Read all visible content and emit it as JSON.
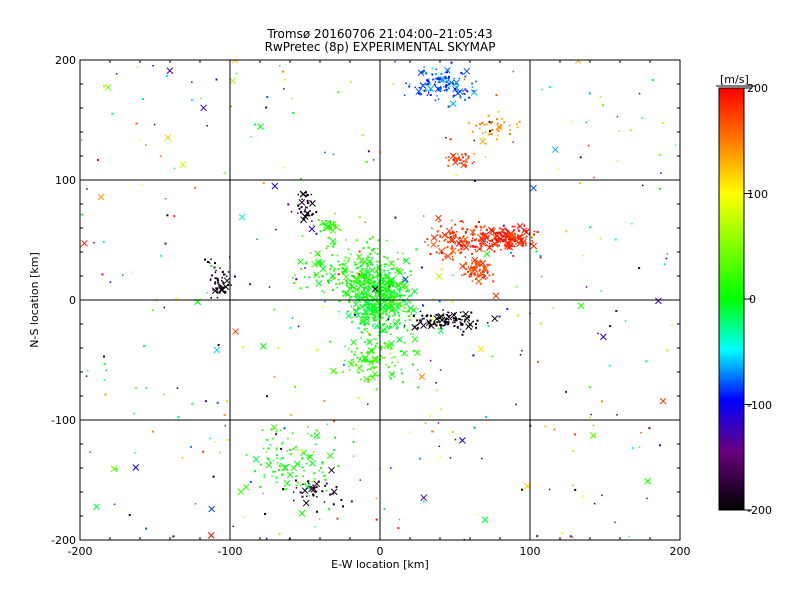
{
  "chart_data": {
    "type": "scatter",
    "title": "Tromsø 20160706 21:04:00–21:05:43",
    "subtitle": "RwPretec (8p) EXPERIMENTAL SKYMAP",
    "xlabel": "E-W location [km]",
    "ylabel": "N-S location [km]",
    "xlim": [
      -200,
      200
    ],
    "ylim": [
      -200,
      200
    ],
    "xticks": [
      "-200",
      "-100",
      "0",
      "100",
      "200"
    ],
    "yticks": [
      "-200",
      "-100",
      "0",
      "100",
      "200"
    ],
    "grid": true,
    "colorbar": {
      "label": "[m/s]",
      "range": [
        -200,
        200
      ],
      "ticks": [
        "-200",
        "-100",
        "0",
        "100",
        "200"
      ],
      "stops": [
        "#000000",
        "#6a0080",
        "#0000ff",
        "#00ffff",
        "#00ff00",
        "#ffff00",
        "#ff8000",
        "#ff0000"
      ]
    },
    "clusters": [
      {
        "velocity": 0,
        "x": [
          -30,
          30
        ],
        "y": [
          -40,
          40
        ],
        "count": 520
      },
      {
        "velocity": 10,
        "x": [
          -70,
          40
        ],
        "y": [
          -10,
          60
        ],
        "count": 220
      },
      {
        "velocity": 20,
        "x": [
          -40,
          30
        ],
        "y": [
          -80,
          -20
        ],
        "count": 120
      },
      {
        "velocity": 5,
        "x": [
          -100,
          -20
        ],
        "y": [
          -180,
          -90
        ],
        "count": 110
      },
      {
        "velocity": 15,
        "x": [
          -45,
          -25
        ],
        "y": [
          55,
          70
        ],
        "count": 40
      },
      {
        "velocity": 190,
        "x": [
          60,
          110
        ],
        "y": [
          40,
          65
        ],
        "count": 160
      },
      {
        "velocity": 180,
        "x": [
          20,
          90
        ],
        "y": [
          25,
          75
        ],
        "count": 150
      },
      {
        "velocity": 175,
        "x": [
          50,
          80
        ],
        "y": [
          10,
          40
        ],
        "count": 80
      },
      {
        "velocity": 170,
        "x": [
          40,
          70
        ],
        "y": [
          110,
          125
        ],
        "count": 40
      },
      {
        "velocity": 140,
        "x": [
          55,
          100
        ],
        "y": [
          130,
          160
        ],
        "count": 40
      },
      {
        "velocity": -200,
        "x": [
          10,
          80
        ],
        "y": [
          -30,
          -5
        ],
        "count": 110
      },
      {
        "velocity": -190,
        "x": [
          -120,
          -95
        ],
        "y": [
          -10,
          40
        ],
        "count": 50
      },
      {
        "velocity": -190,
        "x": [
          -70,
          -20
        ],
        "y": [
          -180,
          -140
        ],
        "count": 40
      },
      {
        "velocity": -190,
        "x": [
          -60,
          -40
        ],
        "y": [
          60,
          100
        ],
        "count": 40
      },
      {
        "velocity": -80,
        "x": [
          10,
          70
        ],
        "y": [
          160,
          200
        ],
        "count": 120
      },
      {
        "velocity": 40,
        "x": [
          -200,
          200
        ],
        "y": [
          -200,
          200
        ],
        "count": 380
      }
    ]
  }
}
